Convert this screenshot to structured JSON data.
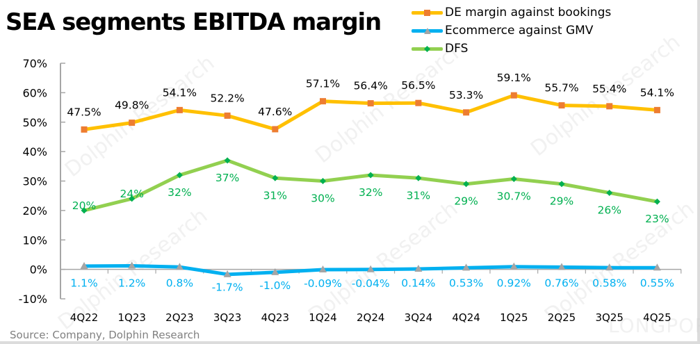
{
  "title": "SEA segments EBITDA margin",
  "source": "Source: Company, Dolphin Research",
  "watermark": "Dolphin Research",
  "corner_watermark": "LONGPORT",
  "chart_data": {
    "type": "line",
    "title": "SEA segments EBITDA margin",
    "xlabel": "",
    "ylabel": "",
    "ylim": [
      -10,
      70
    ],
    "yticks": [
      70,
      60,
      50,
      40,
      30,
      20,
      10,
      0,
      -10
    ],
    "ytick_labels": [
      "70%",
      "60%",
      "50%",
      "40%",
      "30%",
      "20%",
      "10%",
      "0%",
      "-10%"
    ],
    "grid": false,
    "legend_position": "top-right",
    "categories": [
      "4Q22",
      "1Q23",
      "2Q23",
      "3Q23",
      "4Q23",
      "1Q24",
      "2Q24",
      "3Q24",
      "4Q24",
      "1Q25",
      "2Q25",
      "3Q25",
      "4Q25"
    ],
    "series": [
      {
        "name": "DE margin against bookings",
        "line_color": "#FFC000",
        "marker": "square",
        "marker_color": "#ED7D31",
        "label_color": "#000000",
        "label_position": "above",
        "values": [
          47.5,
          49.8,
          54.1,
          52.2,
          47.6,
          57.1,
          56.4,
          56.5,
          53.3,
          59.1,
          55.7,
          55.4,
          54.1
        ],
        "labels": [
          "47.5%",
          "49.8%",
          "54.1%",
          "52.2%",
          "47.6%",
          "57.1%",
          "56.4%",
          "56.5%",
          "53.3%",
          "59.1%",
          "55.7%",
          "55.4%",
          "54.1%"
        ]
      },
      {
        "name": "Ecommerce against GMV",
        "line_color": "#00B0F0",
        "marker": "triangle",
        "marker_color": "#A5A5A5",
        "label_color": "#00B0F0",
        "label_position": "below",
        "values": [
          1.1,
          1.2,
          0.8,
          -1.7,
          -1.0,
          -0.09,
          -0.04,
          0.14,
          0.53,
          0.92,
          0.76,
          0.58,
          0.55
        ],
        "labels": [
          "1.1%",
          "1.2%",
          "0.8%",
          "-1.7%",
          "-1.0%",
          "-0.09%",
          "-0.04%",
          "0.14%",
          "0.53%",
          "0.92%",
          "0.76%",
          "0.58%",
          "0.55%"
        ]
      },
      {
        "name": "DFS",
        "line_color": "#92D050",
        "marker": "diamond",
        "marker_color": "#00B050",
        "label_color": "#00B050",
        "label_position": "below",
        "values": [
          20,
          24,
          32,
          37,
          31,
          30,
          32,
          31,
          29,
          30.7,
          29,
          26,
          23
        ],
        "labels": [
          "20%",
          "24%",
          "32%",
          "37%",
          "31%",
          "30%",
          "32%",
          "31%",
          "29%",
          "30.7%",
          "29%",
          "26%",
          "23%"
        ]
      }
    ]
  }
}
